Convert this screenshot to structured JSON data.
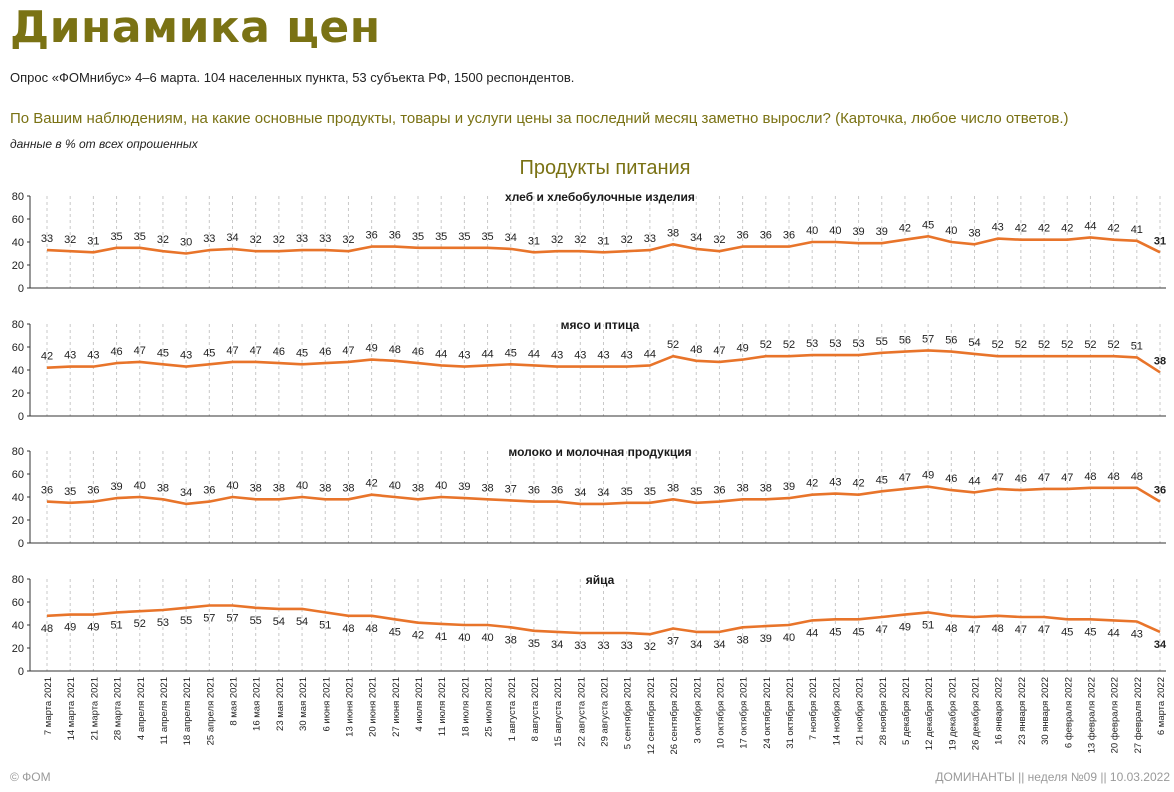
{
  "header": {
    "title": "Динамика цен",
    "survey": "Опрос «ФОМнибус» 4–6 марта. 104 населенных пункта, 53 субъекта РФ, 1500 респондентов.",
    "question": "По Вашим наблюдениям, на какие основные продукты, товары и услуги цены за последний месяц заметно выросли?",
    "question_note": "(Карточка, любое число ответов.)",
    "note": "данные в % от всех опрошенных",
    "section": "Продукты питания"
  },
  "footer": {
    "left": "© ФОМ",
    "right": "ДОМИНАНТЫ  ||  неделя №09 || 10.03.2022"
  },
  "colors": {
    "line": "#e8742a",
    "accent": "#7a7214",
    "grid": "#c8c8c8"
  },
  "chart_data": {
    "type": "line",
    "ylim": [
      0,
      80
    ],
    "yticks": [
      0,
      20,
      40,
      60,
      80
    ],
    "grid": true,
    "categories": [
      "7 марта 2021",
      "14 марта 2021",
      "21 марта 2021",
      "28 марта 2021",
      "4 апреля 2021",
      "11 апреля 2021",
      "18 апреля 2021",
      "25 апреля 2021",
      "8 мая 2021",
      "16 мая 2021",
      "23 мая 2021",
      "30 мая 2021",
      "6 июня 2021",
      "13 июня 2021",
      "20 июня 2021",
      "27 июня 2021",
      "4 июля 2021",
      "11 июля 2021",
      "18 июля 2021",
      "25 июля 2021",
      "1 августа 2021",
      "8 августа 2021",
      "15 августа 2021",
      "22 августа 2021",
      "29 августа 2021",
      "5 сентября 2021",
      "12 сентября 2021",
      "26 сентября 2021",
      "3 октября 2021",
      "10 октября 2021",
      "17 октября 2021",
      "24 октября 2021",
      "31 октября 2021",
      "7 ноября 2021",
      "14 ноября 2021",
      "21 ноября 2021",
      "28 ноября 2021",
      "5 декабря 2021",
      "12 декабря 2021",
      "19 декабря 2021",
      "26 декабря 2021",
      "16 января 2022",
      "23 января 2022",
      "30 января 2022",
      "6 февраля 2022",
      "13 февраля 2022",
      "20 февраля 2022",
      "27 февраля 2022",
      "6 марта 2022"
    ],
    "series": [
      {
        "name": "хлеб и хлебобулочные изделия",
        "values": [
          33,
          32,
          31,
          35,
          35,
          32,
          30,
          33,
          34,
          32,
          32,
          33,
          33,
          32,
          36,
          36,
          35,
          35,
          35,
          35,
          34,
          31,
          32,
          32,
          31,
          32,
          33,
          38,
          34,
          32,
          36,
          36,
          36,
          40,
          40,
          39,
          39,
          42,
          45,
          40,
          38,
          43,
          42,
          42,
          42,
          44,
          42,
          41,
          31
        ]
      },
      {
        "name": "мясо и птица",
        "values": [
          42,
          43,
          43,
          46,
          47,
          45,
          43,
          45,
          47,
          47,
          46,
          45,
          46,
          47,
          49,
          48,
          46,
          44,
          43,
          44,
          45,
          44,
          43,
          43,
          43,
          43,
          44,
          52,
          48,
          47,
          49,
          52,
          52,
          53,
          53,
          53,
          55,
          56,
          57,
          56,
          54,
          52,
          52,
          52,
          52,
          52,
          52,
          51,
          38
        ]
      },
      {
        "name": "молоко и молочная продукция",
        "values": [
          36,
          35,
          36,
          39,
          40,
          38,
          34,
          36,
          40,
          38,
          38,
          40,
          38,
          38,
          42,
          40,
          38,
          40,
          39,
          38,
          37,
          36,
          36,
          34,
          34,
          35,
          35,
          38,
          35,
          36,
          38,
          38,
          39,
          42,
          43,
          42,
          45,
          47,
          49,
          46,
          44,
          47,
          46,
          47,
          47,
          48,
          48,
          48,
          36
        ]
      },
      {
        "name": "яйца",
        "values": [
          48,
          49,
          49,
          51,
          52,
          53,
          55,
          57,
          57,
          55,
          54,
          54,
          51,
          48,
          48,
          45,
          42,
          41,
          40,
          40,
          38,
          35,
          34,
          33,
          33,
          33,
          32,
          37,
          34,
          34,
          38,
          39,
          40,
          44,
          45,
          45,
          47,
          49,
          51,
          48,
          47,
          48,
          47,
          47,
          45,
          45,
          44,
          43,
          34
        ]
      }
    ]
  }
}
